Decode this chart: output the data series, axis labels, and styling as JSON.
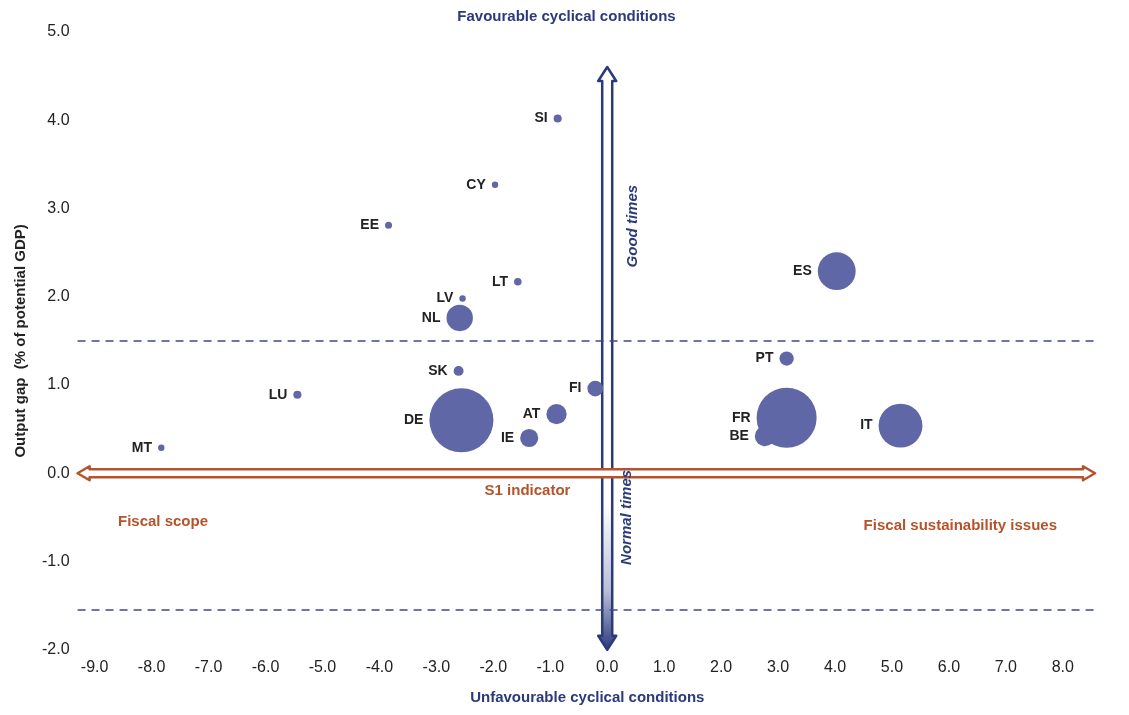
{
  "chart_data": {
    "type": "bubble",
    "title": "Favourable cyclical conditions",
    "xlabel": "Unfavourable cyclical conditions",
    "ylabel": "Output gap  (% of potential GDP)",
    "series": [
      {
        "color": "#5f67a6",
        "x": [
          -0.87,
          -1.97,
          -3.84,
          -1.57,
          -2.54,
          -2.59,
          -2.61,
          -5.44,
          -2.56,
          -0.89,
          -0.21,
          -1.37,
          -7.83,
          4.03,
          3.15,
          3.15,
          2.77,
          5.15
        ],
        "values": [
          4.02,
          3.27,
          2.81,
          2.17,
          1.98,
          1.76,
          1.16,
          0.89,
          0.6,
          0.67,
          0.96,
          0.4,
          0.29,
          2.29,
          1.3,
          0.63,
          0.42,
          0.54
        ],
        "sizes": [
          0.016,
          0.01,
          0.012,
          0.014,
          0.01,
          0.17,
          0.024,
          0.016,
          1,
          0.1,
          0.06,
          0.08,
          0.01,
          0.35,
          0.05,
          0.88,
          0.1,
          0.47
        ],
        "value_labels": [
          "SI",
          "CY",
          "EE",
          "LT",
          "LV",
          "NL",
          "SK",
          "LU",
          "DE",
          "AT",
          "FI",
          "IE",
          "MT",
          "ES",
          "PT",
          "FR",
          "BE",
          "IT"
        ]
      }
    ],
    "xlim": [
      -9.3,
      8.6
    ],
    "ylim": [
      -2.0,
      5.0
    ],
    "xticks": [
      {
        "value": -9,
        "label": "-9.0"
      },
      {
        "value": -8,
        "label": "-8.0"
      },
      {
        "value": -7,
        "label": "-7.0"
      },
      {
        "value": -6,
        "label": "-6.0"
      },
      {
        "value": -5,
        "label": "-5.0"
      },
      {
        "value": -4,
        "label": "-4.0"
      },
      {
        "value": -3,
        "label": "-3.0"
      },
      {
        "value": -2,
        "label": "-2.0"
      },
      {
        "value": -1,
        "label": "-1.0"
      },
      {
        "value": 0,
        "label": "0.0"
      },
      {
        "value": 1,
        "label": "1.0"
      },
      {
        "value": 2,
        "label": "2.0"
      },
      {
        "value": 3,
        "label": "3.0"
      },
      {
        "value": 4,
        "label": "4.0"
      },
      {
        "value": 5,
        "label": "5.0"
      },
      {
        "value": 6,
        "label": "6.0"
      },
      {
        "value": 7,
        "label": "7.0"
      },
      {
        "value": 8,
        "label": "8.0"
      }
    ],
    "yticks": [
      {
        "value": -2,
        "label": "-2.0"
      },
      {
        "value": -1,
        "label": "-1.0"
      },
      {
        "value": 0,
        "label": "0.0"
      },
      {
        "value": 1,
        "label": "1.0"
      },
      {
        "value": 2,
        "label": "2.0"
      },
      {
        "value": 3,
        "label": "3.0"
      },
      {
        "value": 4,
        "label": "4.0"
      },
      {
        "value": 5,
        "label": "5.0"
      }
    ],
    "ref_lines": [
      {
        "axis": "y",
        "value": 1.5,
        "color": "#3c4a8c",
        "line_style": "dashed"
      },
      {
        "axis": "y",
        "value": -1.55,
        "color": "#3c4a8c",
        "line_style": "dashed"
      }
    ],
    "annotations": [
      "Good times",
      "Normal times",
      "S1 indicator",
      "Fiscal scope",
      "Fiscal sustainability issues"
    ],
    "grid": false,
    "legend": false
  }
}
